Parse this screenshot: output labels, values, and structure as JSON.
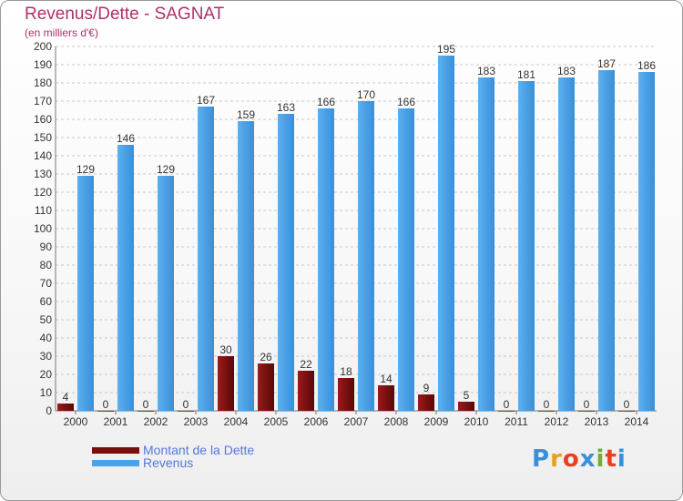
{
  "header": {
    "title": "Revenus/Dette - SAGNAT",
    "subtitle": "(en milliers d'€)"
  },
  "legend": {
    "items": [
      {
        "label": "Montant de la Dette",
        "color": "#7a0d0d"
      },
      {
        "label": "Revenus",
        "color": "#4aa3e8"
      }
    ]
  },
  "logo": {
    "text": "Proxiti",
    "letters": [
      "P",
      "r",
      "o",
      "x",
      "i",
      "t",
      "i"
    ],
    "colors": [
      "#3a8fd8",
      "#e8a020",
      "#e84020",
      "#3a8fd8",
      "#70b030",
      "#e84020",
      "#3a8fd8"
    ]
  },
  "chart_data": {
    "type": "bar",
    "categories": [
      "2000",
      "2001",
      "2002",
      "2003",
      "2004",
      "2005",
      "2006",
      "2007",
      "2008",
      "2009",
      "2010",
      "2011",
      "2012",
      "2013",
      "2014"
    ],
    "series": [
      {
        "name": "Montant de la Dette",
        "color": "#7a0d0d",
        "values": [
          4,
          0,
          0,
          0,
          30,
          26,
          22,
          18,
          14,
          9,
          5,
          0,
          0,
          0,
          0
        ]
      },
      {
        "name": "Revenus",
        "color": "#4aa3e8",
        "values": [
          129,
          146,
          129,
          167,
          159,
          163,
          166,
          170,
          166,
          195,
          183,
          181,
          183,
          187,
          186
        ]
      }
    ],
    "ylim": [
      0,
      200
    ],
    "ytick_step": 10,
    "yticks": [
      "0",
      "10",
      "20",
      "30",
      "40",
      "50",
      "60",
      "70",
      "80",
      "90",
      "100",
      "110",
      "120",
      "130",
      "140",
      "150",
      "160",
      "170",
      "180",
      "190",
      "200"
    ],
    "grid": true,
    "data_labels": true,
    "legend_position": "bottom-left"
  }
}
